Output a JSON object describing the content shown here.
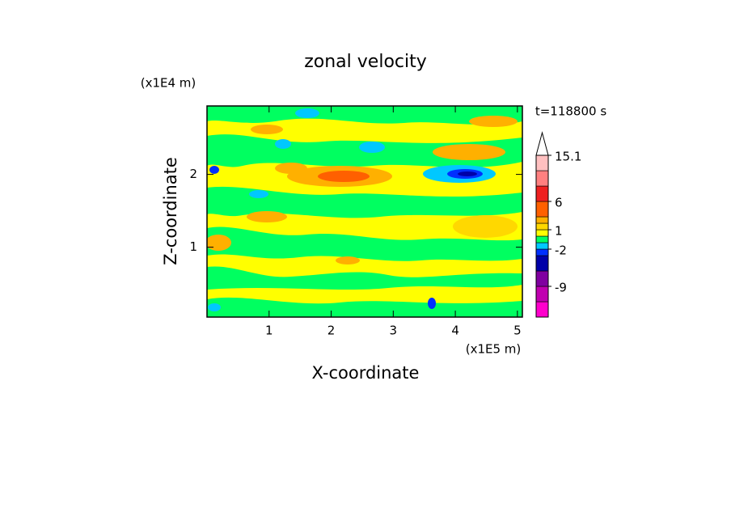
{
  "chart_data": {
    "type": "contour",
    "title": "zonal velocity",
    "x_label": "X-coordinate",
    "y_label": "Z-coordinate",
    "x_unit": "(x1E5 m)",
    "y_unit": "(x1E4 m)",
    "annotation": "t=118800 s",
    "xlim": [
      0,
      5.08
    ],
    "ylim": [
      0.04,
      2.94
    ],
    "xticks": [
      1,
      2,
      3,
      4,
      5
    ],
    "yticks": [
      1,
      2
    ],
    "colorbar": {
      "levels": [
        -15,
        -12,
        -9,
        -6,
        -3,
        -2,
        -1,
        0,
        1,
        2,
        3,
        6,
        9,
        12,
        15.1
      ],
      "colors": [
        "#ff00cc",
        "#c000b0",
        "#8000a0",
        "#0000a8",
        "#0030ff",
        "#00c8ff",
        "#00ff60",
        "#ffff00",
        "#ffd800",
        "#ffb000",
        "#ff6000",
        "#ee2020",
        "#ff8080",
        "#ffc0c0"
      ],
      "extend_color": "#ffffff",
      "ticks": [
        15.1,
        6,
        1,
        -2,
        -9
      ]
    }
  }
}
